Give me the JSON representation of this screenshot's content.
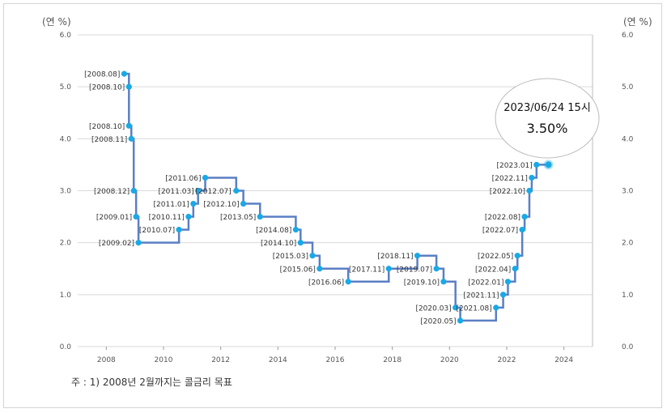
{
  "chart_data": {
    "type": "line",
    "step": true,
    "ylabel_left": "(연 %)",
    "ylabel_right": "(연 %)",
    "ylim": [
      0,
      6
    ],
    "yticks": [
      "0.0",
      "1.0",
      "2.0",
      "3.0",
      "4.0",
      "5.0",
      "6.0"
    ],
    "xlim": [
      2007.0,
      2025.0
    ],
    "xticks": [
      "2008",
      "2010",
      "2012",
      "2014",
      "2016",
      "2018",
      "2020",
      "2022",
      "2024"
    ],
    "grid": true,
    "points": [
      {
        "label": "[2008.08]",
        "x": "2008.08",
        "y": 5.25
      },
      {
        "label": "[2008.10]",
        "x": "2008.10",
        "y": 5.0
      },
      {
        "label": "[2008.10]",
        "x": "2008.10",
        "y": 4.25
      },
      {
        "label": "[2008.11]",
        "x": "2008.11",
        "y": 4.0
      },
      {
        "label": "[2008.12]",
        "x": "2008.12",
        "y": 3.0
      },
      {
        "label": "[2009.01]",
        "x": "2009.01",
        "y": 2.5
      },
      {
        "label": "[2009.02]",
        "x": "2009.02",
        "y": 2.0
      },
      {
        "label": "[2010.07]",
        "x": "2010.07",
        "y": 2.25
      },
      {
        "label": "[2010.11]",
        "x": "2010.11",
        "y": 2.5
      },
      {
        "label": "[2011.01]",
        "x": "2011.01",
        "y": 2.75
      },
      {
        "label": "[2011.03]",
        "x": "2011.03",
        "y": 3.0
      },
      {
        "label": "[2011.06]",
        "x": "2011.06",
        "y": 3.25
      },
      {
        "label": "[2012.07]",
        "x": "2012.07",
        "y": 3.0
      },
      {
        "label": "[2012.10]",
        "x": "2012.10",
        "y": 2.75
      },
      {
        "label": "[2013.05]",
        "x": "2013.05",
        "y": 2.5
      },
      {
        "label": "[2014.08]",
        "x": "2014.08",
        "y": 2.25
      },
      {
        "label": "[2014.10]",
        "x": "2014.10",
        "y": 2.0
      },
      {
        "label": "[2015.03]",
        "x": "2015.03",
        "y": 1.75
      },
      {
        "label": "[2015.06]",
        "x": "2015.06",
        "y": 1.5
      },
      {
        "label": "[2016.06]",
        "x": "2016.06",
        "y": 1.25
      },
      {
        "label": "[2017.11]",
        "x": "2017.11",
        "y": 1.5
      },
      {
        "label": "[2018.11]",
        "x": "2018.11",
        "y": 1.75
      },
      {
        "label": "[2019.07]",
        "x": "2019.07",
        "y": 1.5
      },
      {
        "label": "[2019.10]",
        "x": "2019.10",
        "y": 1.25
      },
      {
        "label": "[2020.03]",
        "x": "2020.03",
        "y": 0.75
      },
      {
        "label": "[2020.05]",
        "x": "2020.05",
        "y": 0.5
      },
      {
        "label": "[2021.08]",
        "x": "2021.08",
        "y": 0.75
      },
      {
        "label": "[2021.11]",
        "x": "2021.11",
        "y": 1.0
      },
      {
        "label": "[2022.01]",
        "x": "2022.01",
        "y": 1.25
      },
      {
        "label": "[2022.04]",
        "x": "2022.04",
        "y": 1.5
      },
      {
        "label": "[2022.05]",
        "x": "2022.05",
        "y": 1.75
      },
      {
        "label": "[2022.07]",
        "x": "2022.07",
        "y": 2.25
      },
      {
        "label": "[2022.08]",
        "x": "2022.08",
        "y": 2.5
      },
      {
        "label": "[2022.10]",
        "x": "2022.10",
        "y": 3.0
      },
      {
        "label": "[2022.11]",
        "x": "2022.11",
        "y": 3.25
      },
      {
        "label": "[2023.01]",
        "x": "2023.01",
        "y": 3.5
      }
    ],
    "end_point": {
      "x": "2023.06",
      "y": 3.5
    },
    "tooltip": {
      "date": "2023/06/24 15시",
      "value": "3.50%"
    },
    "note": "주 : 1) 2008년 2월까지는 콜금리 목표",
    "colors": {
      "line": "#5b7fc4",
      "point": "#19a9e6",
      "grid": "#d9d9d9"
    }
  }
}
